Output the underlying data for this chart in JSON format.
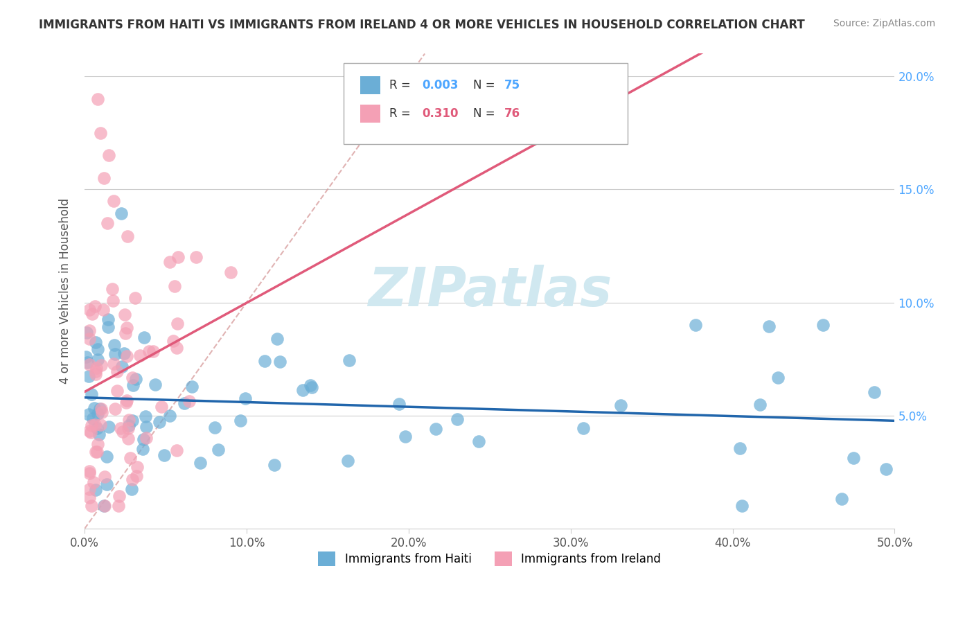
{
  "title": "IMMIGRANTS FROM HAITI VS IMMIGRANTS FROM IRELAND 4 OR MORE VEHICLES IN HOUSEHOLD CORRELATION CHART",
  "source": "Source: ZipAtlas.com",
  "ylabel": "4 or more Vehicles in Household",
  "x_min": 0.0,
  "x_max": 0.5,
  "y_min": 0.0,
  "y_max": 0.21,
  "haiti_R": 0.003,
  "haiti_N": 75,
  "ireland_R": 0.31,
  "ireland_N": 76,
  "haiti_color": "#6baed6",
  "ireland_color": "#f4a0b5",
  "haiti_line_color": "#2166ac",
  "ireland_line_color": "#e05a7a",
  "diagonal_color": "#d9a0a0",
  "watermark_color": "#d0e8f0",
  "background_color": "#ffffff",
  "x_tick_vals": [
    0.0,
    0.1,
    0.2,
    0.3,
    0.4,
    0.5
  ],
  "x_tick_labels": [
    "0.0%",
    "10.0%",
    "20.0%",
    "30.0%",
    "40.0%",
    "50.0%"
  ],
  "y_tick_vals": [
    0.05,
    0.1,
    0.15,
    0.2
  ],
  "y_tick_labels": [
    "5.0%",
    "10.0%",
    "15.0%",
    "20.0%"
  ]
}
